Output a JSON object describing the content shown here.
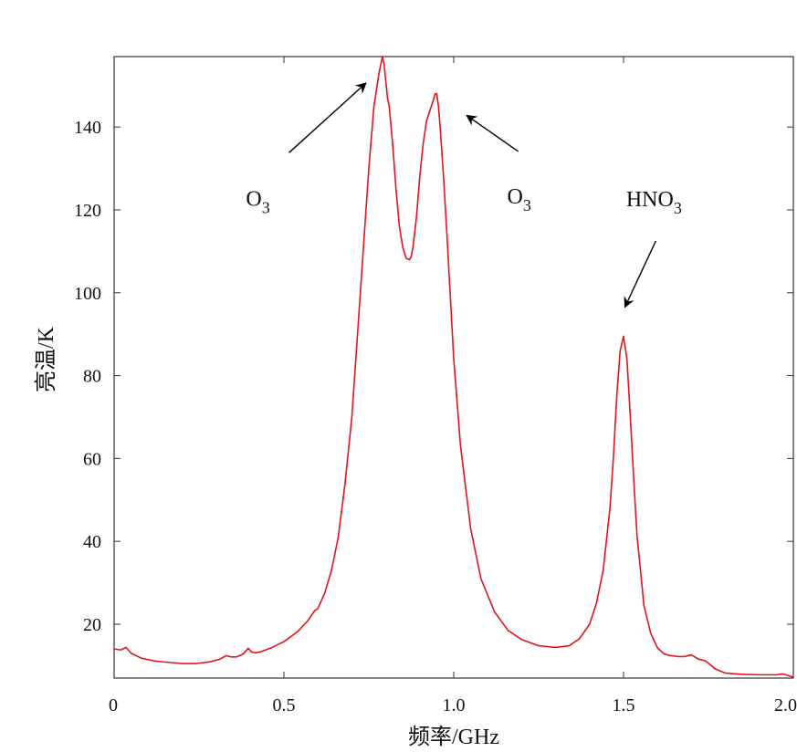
{
  "chart_data": {
    "type": "line",
    "title": "",
    "xlabel": "频率/GHz",
    "ylabel": "亮温/K",
    "xlim": [
      0,
      2.0
    ],
    "ylim": [
      7,
      157
    ],
    "xticks": [
      0,
      0.5,
      1.0,
      1.5,
      2.0
    ],
    "xtick_labels": [
      "0",
      "0.5",
      "1.0",
      "1.5",
      "2.0"
    ],
    "yticks": [
      20,
      40,
      60,
      80,
      100,
      120,
      140
    ],
    "ytick_labels": [
      "20",
      "40",
      "60",
      "80",
      "100",
      "120",
      "140"
    ],
    "grid": false,
    "legend": false,
    "line_color": "#e0141b",
    "axis_color": "#333333",
    "series": [
      {
        "x": [
          0.0,
          0.02,
          0.035,
          0.05,
          0.08,
          0.12,
          0.16,
          0.2,
          0.24,
          0.28,
          0.31,
          0.33,
          0.345,
          0.36,
          0.38,
          0.395,
          0.405,
          0.415,
          0.43,
          0.46,
          0.5,
          0.54,
          0.57,
          0.59,
          0.6,
          0.62,
          0.64,
          0.66,
          0.68,
          0.7,
          0.72,
          0.735,
          0.75,
          0.765,
          0.78,
          0.79,
          0.795,
          0.8,
          0.805,
          0.81,
          0.82,
          0.83,
          0.84,
          0.85,
          0.86,
          0.87,
          0.875,
          0.88,
          0.89,
          0.9,
          0.91,
          0.92,
          0.93,
          0.94,
          0.945,
          0.95,
          0.955,
          0.96,
          0.97,
          0.98,
          0.99,
          1.0,
          1.02,
          1.05,
          1.08,
          1.12,
          1.16,
          1.2,
          1.25,
          1.3,
          1.34,
          1.37,
          1.4,
          1.42,
          1.44,
          1.46,
          1.47,
          1.48,
          1.49,
          1.5,
          1.51,
          1.52,
          1.53,
          1.54,
          1.55,
          1.56,
          1.58,
          1.6,
          1.62,
          1.64,
          1.66,
          1.68,
          1.7,
          1.72,
          1.74,
          1.75,
          1.77,
          1.8,
          1.85,
          1.9,
          1.95,
          1.97,
          1.99,
          2.0
        ],
        "values": [
          14,
          13.8,
          14.4,
          13,
          11.8,
          11.1,
          10.8,
          10.5,
          10.5,
          10.9,
          11.5,
          12.4,
          12.1,
          12.1,
          12.8,
          14.2,
          13.3,
          13.1,
          13.3,
          14.2,
          15.8,
          18.2,
          20.8,
          23.2,
          23.8,
          27.5,
          33,
          41,
          54,
          70,
          94,
          112,
          130,
          145,
          153,
          157,
          155,
          151,
          147,
          145,
          136,
          125,
          116,
          111,
          108.3,
          108,
          108.8,
          111,
          118,
          128,
          136,
          141.5,
          144,
          146.5,
          148,
          148,
          145,
          140,
          128,
          114,
          99,
          84,
          63,
          43,
          31,
          23,
          18.5,
          16.3,
          14.8,
          14.4,
          14.8,
          16.5,
          20,
          25,
          33,
          48,
          60,
          75,
          86,
          89.5,
          84,
          70,
          55,
          41,
          33,
          24.5,
          17.8,
          14.3,
          12.8,
          12.4,
          12.2,
          12.2,
          12.6,
          11.6,
          11.2,
          10.6,
          9.2,
          8.2,
          7.9,
          7.8,
          7.8,
          8,
          7.5,
          7.2
        ]
      }
    ],
    "annotations": [
      {
        "text": "O",
        "sub": "3",
        "arrow_from": [
          0.515,
          133.8
        ],
        "arrow_to": [
          0.74,
          150.5
        ]
      },
      {
        "text": "O",
        "sub": "3",
        "arrow_from": [
          1.19,
          134.1
        ],
        "arrow_to": [
          1.04,
          142.7
        ]
      },
      {
        "text": "HNO",
        "sub": "3",
        "arrow_from": [
          1.595,
          112.5
        ],
        "arrow_to": [
          1.505,
          96.7
        ]
      }
    ]
  }
}
